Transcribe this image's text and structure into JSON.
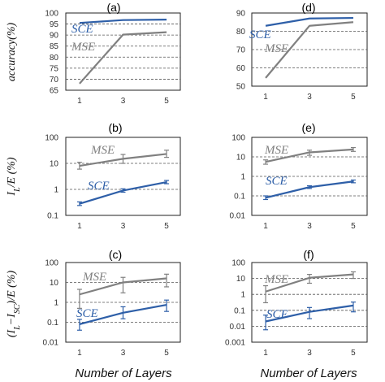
{
  "chart_data": [
    {
      "id": "a",
      "label": "(a)",
      "type": "line",
      "scale": "linear",
      "x": [
        1,
        3,
        5
      ],
      "ylim": [
        65,
        100
      ],
      "yticks": [
        "65",
        "70",
        "75",
        "80",
        "85",
        "90",
        "95",
        "100"
      ],
      "ylabel": "accuracy(%)",
      "series": [
        {
          "name": "SCE",
          "color": "#2e5fa8",
          "values": [
            95.5,
            96.8,
            97.0
          ]
        },
        {
          "name": "MSE",
          "color": "#808080",
          "values": [
            68.0,
            90.2,
            91.3
          ]
        }
      ]
    },
    {
      "id": "d",
      "label": "(d)",
      "type": "line",
      "scale": "linear",
      "x": [
        1,
        3,
        5
      ],
      "ylim": [
        50,
        90
      ],
      "yticks": [
        "50",
        "60",
        "70",
        "80",
        "90"
      ],
      "series": [
        {
          "name": "SCE",
          "color": "#2e5fa8",
          "values": [
            83.0,
            87.0,
            87.3
          ]
        },
        {
          "name": "MSE",
          "color": "#808080",
          "values": [
            54.5,
            83.0,
            85.0
          ]
        }
      ]
    },
    {
      "id": "b",
      "label": "(b)",
      "type": "line",
      "scale": "log",
      "x": [
        1,
        3,
        5
      ],
      "ylim": [
        0.1,
        100
      ],
      "yticks": [
        "100",
        "10",
        "1",
        "0.1"
      ],
      "ylabel": "I_L/E (%)",
      "series": [
        {
          "name": "MSE",
          "color": "#808080",
          "values": [
            8.0,
            15.0,
            23.0
          ],
          "err_low": [
            6.0,
            10.0,
            17.0
          ],
          "err_high": [
            11.0,
            22.0,
            32.0
          ]
        },
        {
          "name": "SCE",
          "color": "#2e5fa8",
          "values": [
            0.28,
            0.9,
            1.9
          ],
          "err_low": [
            0.24,
            0.78,
            1.65
          ],
          "err_high": [
            0.33,
            1.05,
            2.2
          ]
        }
      ]
    },
    {
      "id": "e",
      "label": "(e)",
      "type": "line",
      "scale": "log",
      "x": [
        1,
        3,
        5
      ],
      "ylim": [
        0.01,
        100
      ],
      "yticks": [
        "100",
        "10",
        "1",
        "0.1",
        "0.01"
      ],
      "series": [
        {
          "name": "MSE",
          "color": "#808080",
          "values": [
            5.5,
            17.0,
            24.0
          ],
          "err_low": [
            4.2,
            12.0,
            19.0
          ],
          "err_high": [
            7.0,
            22.0,
            30.0
          ]
        },
        {
          "name": "SCE",
          "color": "#2e5fa8",
          "values": [
            0.08,
            0.28,
            0.55
          ],
          "err_low": [
            0.065,
            0.24,
            0.47
          ],
          "err_high": [
            0.1,
            0.33,
            0.65
          ]
        }
      ]
    },
    {
      "id": "c",
      "label": "(c)",
      "type": "line",
      "scale": "log",
      "x": [
        1,
        3,
        5
      ],
      "ylim": [
        0.01,
        100
      ],
      "yticks": [
        "100",
        "10",
        "1",
        "0.1",
        "0.01"
      ],
      "ylabel": "(I_L−I_SC)/E (%)",
      "series": [
        {
          "name": "MSE",
          "color": "#808080",
          "values": [
            2.5,
            10.0,
            16.0
          ],
          "err_low": [
            0.5,
            3.0,
            6.0
          ],
          "err_high": [
            4.5,
            18.0,
            26.0
          ]
        },
        {
          "name": "SCE",
          "color": "#2e5fa8",
          "values": [
            0.08,
            0.3,
            0.75
          ],
          "err_low": [
            0.04,
            0.15,
            0.35
          ],
          "err_high": [
            0.14,
            0.6,
            1.3
          ]
        }
      ]
    },
    {
      "id": "f",
      "label": "(f)",
      "type": "line",
      "scale": "log",
      "x": [
        1,
        3,
        5
      ],
      "ylim": [
        0.001,
        100
      ],
      "yticks": [
        "100",
        "10",
        "1",
        "0.1",
        "0.01",
        "0.001"
      ],
      "series": [
        {
          "name": "MSE",
          "color": "#808080",
          "values": [
            1.5,
            11.0,
            18.0
          ],
          "err_low": [
            0.3,
            5.0,
            10.0
          ],
          "err_high": [
            3.5,
            18.0,
            26.0
          ]
        },
        {
          "name": "SCE",
          "color": "#2e5fa8",
          "values": [
            0.02,
            0.08,
            0.2
          ],
          "err_low": [
            0.006,
            0.03,
            0.08
          ],
          "err_high": [
            0.05,
            0.15,
            0.33
          ]
        }
      ]
    }
  ],
  "shared": {
    "xticks": [
      "1",
      "3",
      "5"
    ],
    "xlabel": "Number of Layers"
  }
}
